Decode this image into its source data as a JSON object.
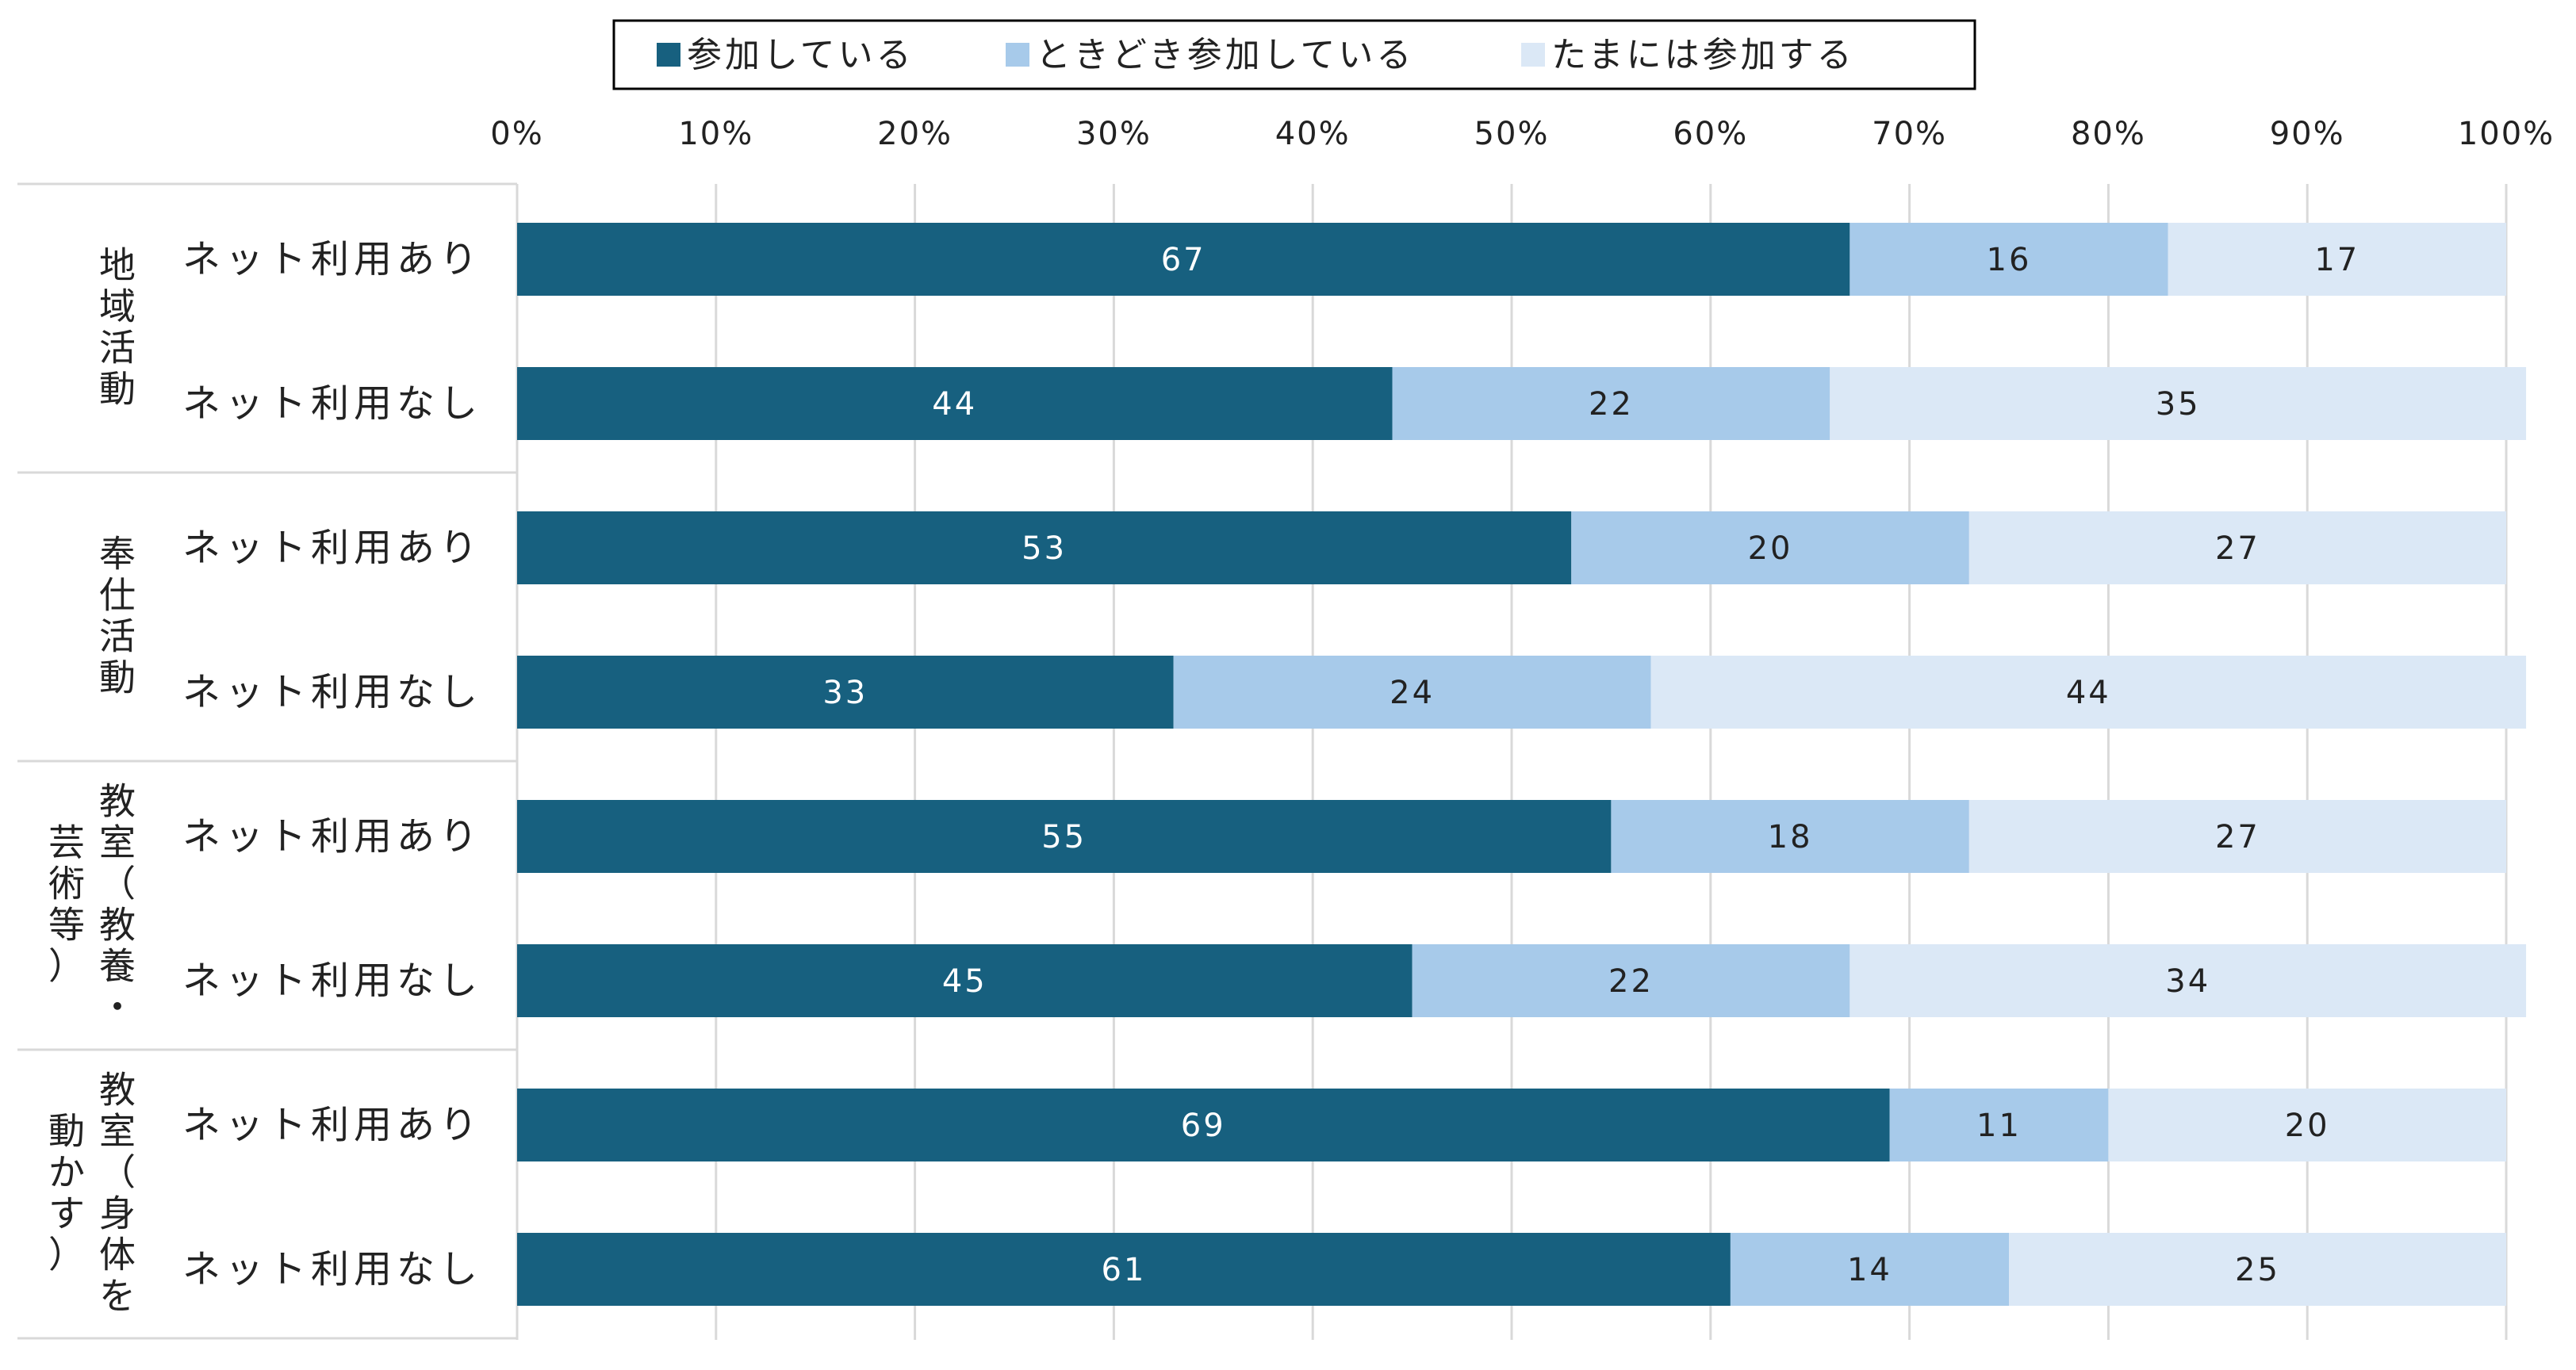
{
  "chart_data": {
    "type": "bar",
    "orientation": "horizontal",
    "stacked": true,
    "xlim": [
      0,
      100
    ],
    "x_ticks": [
      "0%",
      "10%",
      "20%",
      "30%",
      "40%",
      "50%",
      "60%",
      "70%",
      "80%",
      "90%",
      "100%"
    ],
    "grid": true,
    "legend_position": "top",
    "groups": [
      {
        "label_lines": [
          "地域活動"
        ],
        "rows": [
          "ネット利用あり",
          "ネット利用なし"
        ]
      },
      {
        "label_lines": [
          "奉仕活動"
        ],
        "rows": [
          "ネット利用あり",
          "ネット利用なし"
        ]
      },
      {
        "label_lines": [
          "教室（教養・",
          "芸術等）"
        ],
        "rows": [
          "ネット利用あり",
          "ネット利用なし"
        ]
      },
      {
        "label_lines": [
          "教室（身体を",
          "動かす）"
        ],
        "rows": [
          "ネット利用あり",
          "ネット利用なし"
        ]
      }
    ],
    "series": [
      {
        "name": "参加している",
        "color": "#17607f",
        "label_color": "#ffffff",
        "values": [
          67,
          44,
          53,
          33,
          55,
          45,
          69,
          61
        ]
      },
      {
        "name": "ときどき参加している",
        "color": "#a7caea",
        "label_color": "#222222",
        "values": [
          16,
          22,
          20,
          24,
          18,
          22,
          11,
          14
        ]
      },
      {
        "name": "たまには参加する",
        "color": "#dbe8f6",
        "label_color": "#222222",
        "values": [
          17,
          35,
          27,
          44,
          27,
          34,
          20,
          25
        ]
      }
    ]
  }
}
